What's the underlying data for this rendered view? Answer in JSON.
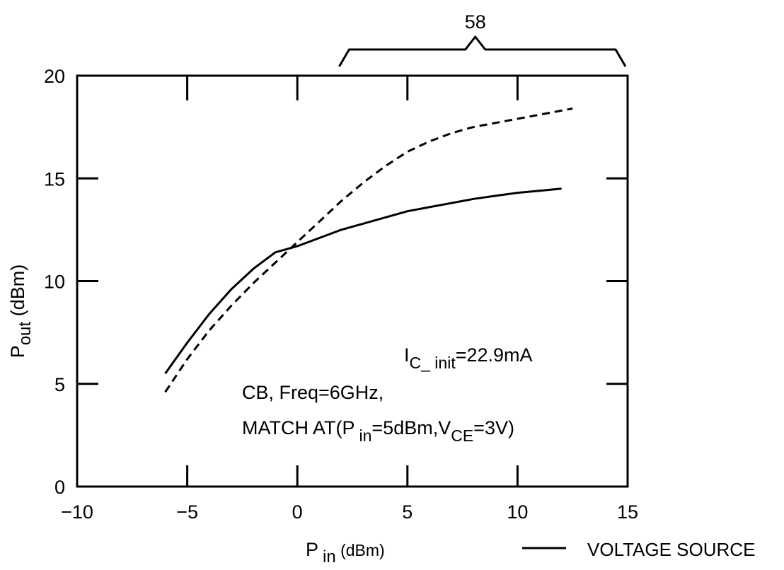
{
  "chart_data": {
    "type": "line",
    "xlim": [
      -10,
      15
    ],
    "ylim": [
      0,
      20
    ],
    "x_ticks": [
      -10,
      -5,
      0,
      5,
      10,
      15
    ],
    "y_ticks": [
      0,
      5,
      10,
      15,
      20
    ],
    "x_tick_labels": [
      "−10",
      "−5",
      "0",
      "5",
      "10",
      "15"
    ],
    "y_tick_labels": [
      "0",
      "5",
      "10",
      "15",
      "20"
    ],
    "xlabel": {
      "main": "P",
      "sub": "in",
      "unit": " (dBm)"
    },
    "ylabel": {
      "main": "P",
      "sub": "out",
      "unit": " (dBm)"
    },
    "bracket_label": "58",
    "bracket_range": [
      2,
      15
    ],
    "series": [
      {
        "name": "VOLTAGE SOURCE",
        "style": "solid",
        "x": [
          -6,
          -5,
          -4,
          -3,
          -2,
          -1,
          0,
          1,
          2,
          3,
          4,
          5,
          6,
          7,
          8,
          9,
          10,
          11,
          12
        ],
        "y": [
          5.5,
          7.0,
          8.4,
          9.6,
          10.6,
          11.4,
          11.7,
          12.1,
          12.5,
          12.8,
          13.1,
          13.4,
          13.6,
          13.8,
          14.0,
          14.15,
          14.3,
          14.4,
          14.5
        ]
      },
      {
        "name": "",
        "style": "dashed",
        "x": [
          -6,
          -5,
          -4,
          -3,
          -2,
          -1,
          0,
          1,
          2,
          3,
          4,
          5,
          6,
          7,
          8,
          9,
          10,
          11,
          12,
          12.5
        ],
        "y": [
          4.6,
          6.2,
          7.6,
          8.8,
          9.9,
          10.9,
          11.9,
          12.9,
          13.9,
          14.8,
          15.6,
          16.3,
          16.8,
          17.2,
          17.5,
          17.7,
          17.9,
          18.1,
          18.3,
          18.4
        ]
      }
    ],
    "annotations": {
      "ic_main": "I",
      "ic_sub": "C_ init",
      "ic_value": "=22.9mA",
      "cond_line1": "CB, Freq=6GHz,",
      "cond_line2_prefix": "MATCH  AT(P",
      "cond_line2_sub1": "in",
      "cond_line2_mid": "=5dBm,V",
      "cond_line2_sub2": "CE",
      "cond_line2_suffix": "=3V)"
    },
    "legend": {
      "placement": "bottom-right",
      "entries": [
        {
          "label": "VOLTAGE SOURCE",
          "style": "solid"
        }
      ]
    }
  }
}
